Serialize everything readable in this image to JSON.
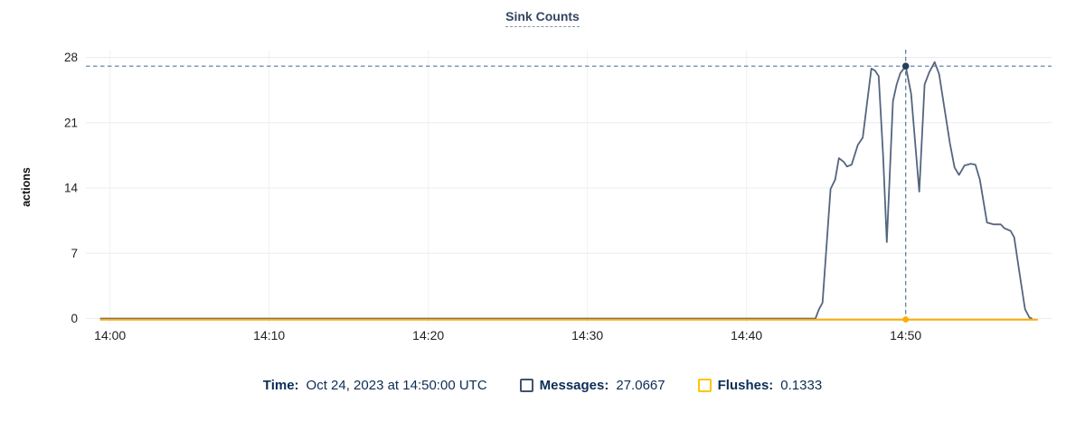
{
  "page": {
    "title": "Sink Counts"
  },
  "chart_data": {
    "type": "line",
    "title": "Sink Counts",
    "xlabel": "",
    "ylabel": "actions",
    "x_unit": "minutes after 14:00 UTC",
    "xlim": [
      -0.85,
      59.2
    ],
    "ylim": [
      0,
      28.8
    ],
    "grid": true,
    "y_ticks": [
      0,
      7,
      14,
      21,
      28
    ],
    "x_ticks": [
      {
        "t": 0,
        "label": "14:00"
      },
      {
        "t": 10,
        "label": "14:10"
      },
      {
        "t": 20,
        "label": "14:20"
      },
      {
        "t": 30,
        "label": "14:30"
      },
      {
        "t": 40,
        "label": "14:40"
      },
      {
        "t": 50,
        "label": "14:50"
      }
    ],
    "series": [
      {
        "name": "Messages",
        "color": "#54657e",
        "marker_color": "#24405e",
        "points": [
          [
            -0.63,
            0
          ],
          [
            44.33,
            0
          ],
          [
            44.55,
            1.0
          ],
          [
            44.77,
            1.7
          ],
          [
            45.28,
            13.9
          ],
          [
            45.57,
            14.9
          ],
          [
            45.8,
            17.2
          ],
          [
            46.1,
            16.8
          ],
          [
            46.31,
            16.3
          ],
          [
            46.6,
            16.5
          ],
          [
            46.99,
            18.6
          ],
          [
            47.3,
            19.4
          ],
          [
            47.84,
            26.8
          ],
          [
            48.07,
            26.6
          ],
          [
            48.3,
            26.0
          ],
          [
            48.58,
            17.5
          ],
          [
            48.81,
            8.2
          ],
          [
            49.2,
            23.3
          ],
          [
            49.43,
            25.1
          ],
          [
            49.66,
            26.3
          ],
          [
            50,
            27.0667
          ],
          [
            50.34,
            24.1
          ],
          [
            50.63,
            18.1
          ],
          [
            50.85,
            13.6
          ],
          [
            51.19,
            25.1
          ],
          [
            51.48,
            26.4
          ],
          [
            51.82,
            27.5
          ],
          [
            52.1,
            26.2
          ],
          [
            52.39,
            23.0
          ],
          [
            52.78,
            18.8
          ],
          [
            53.07,
            16.2
          ],
          [
            53.35,
            15.4
          ],
          [
            53.69,
            16.4
          ],
          [
            54.09,
            16.6
          ],
          [
            54.38,
            16.5
          ],
          [
            54.66,
            14.9
          ],
          [
            55.11,
            10.3
          ],
          [
            55.51,
            10.1
          ],
          [
            55.97,
            10.1
          ],
          [
            56.19,
            9.7
          ],
          [
            56.59,
            9.4
          ],
          [
            56.82,
            8.7
          ],
          [
            57.16,
            4.8
          ],
          [
            57.5,
            1.0
          ],
          [
            57.78,
            0.1
          ],
          [
            57.95,
            0
          ]
        ]
      },
      {
        "name": "Flushes",
        "color": "#ffab00",
        "marker_color": "#ffab00",
        "points": [
          [
            -0.63,
            0
          ],
          [
            49.9,
            0
          ],
          [
            50,
            0.1333
          ],
          [
            50.1,
            0
          ],
          [
            58.3,
            0
          ]
        ]
      }
    ],
    "hover": {
      "t": 50,
      "time_display": "Oct 24, 2023 at 14:50:00 UTC",
      "values": {
        "Messages": 27.0667,
        "Flushes": 0.1333
      }
    },
    "legend_position": "bottom"
  },
  "readout": {
    "time_label": "Time:",
    "time_value": "Oct 24, 2023 at 14:50:00 UTC",
    "items": [
      {
        "label": "Messages:",
        "value": "27.0667",
        "swatch_color": "#42526e"
      },
      {
        "label": "Flushes:",
        "value": "0.1333",
        "swatch_color": "#ffc400"
      }
    ]
  },
  "colors": {
    "title": "#344563",
    "readout_text": "#0c2d55",
    "crosshair": "#53789a",
    "gridline": "#ebecf0",
    "messages_line": "#54657e",
    "flushes_line": "#ffab00"
  }
}
